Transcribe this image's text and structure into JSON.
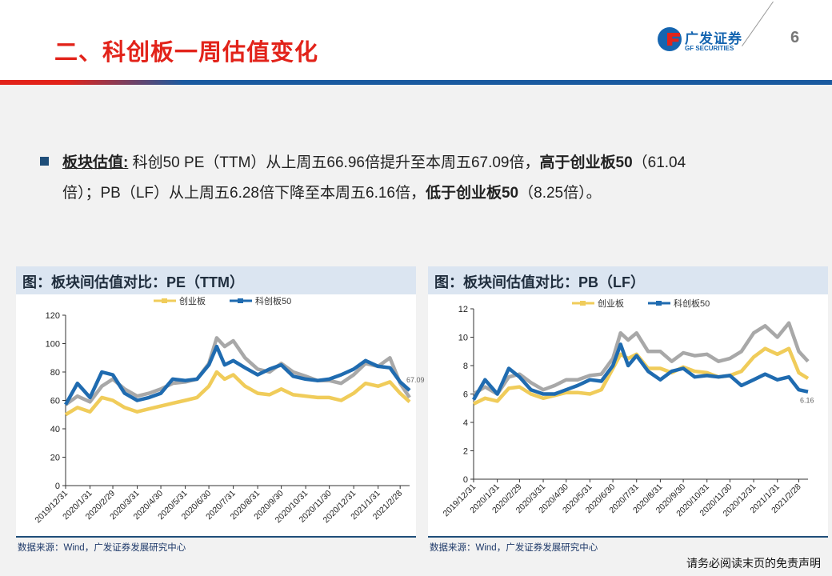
{
  "header": {
    "title": "二、科创板一周估值变化",
    "logo_cn": "广发证券",
    "logo_en": "GF SECURITIES",
    "page_number": "6"
  },
  "bullet": {
    "line1": [
      {
        "t": "板块估值:",
        "s": "u"
      },
      {
        "t": " 科创50 PE（TTM）从上周五66.96倍提升至本周五67.09倍，",
        "s": ""
      },
      {
        "t": "高于创业板50",
        "s": "b"
      },
      {
        "t": "（61.04",
        "s": ""
      }
    ],
    "line2": [
      {
        "t": "倍）；PB（LF）从上周五6.28倍下降至本周五6.16倍，",
        "s": ""
      },
      {
        "t": "低于创业板50",
        "s": "b"
      },
      {
        "t": "（8.25倍）。",
        "s": ""
      }
    ]
  },
  "panels": [
    {
      "title": "图：板块间估值对比：PE（TTM）",
      "source": "数据来源：Wind，广发证券发展研究中心"
    },
    {
      "title": "图：板块间估值对比：PB（LF）",
      "source": "数据来源：Wind，广发证券发展研究中心"
    }
  ],
  "footer": "请务必阅读末页的免责声明",
  "colors": {
    "blue": "#1f6bb0",
    "yellow": "#f0cc5a",
    "gray": "#a8a8a8",
    "red": "#e2231a"
  },
  "chart_data": [
    {
      "type": "line",
      "title": "板块间估值对比：PE（TTM）",
      "ylim": [
        0,
        120
      ],
      "yticks": [
        0,
        20,
        40,
        60,
        80,
        100,
        120
      ],
      "xticks": [
        "2019/12/31",
        "2020/1/31",
        "2020/2/29",
        "2020/3/31",
        "2020/4/30",
        "2020/5/31",
        "2020/6/30",
        "2020/7/31",
        "2020/8/31",
        "2020/9/30",
        "2020/10/31",
        "2020/11/30",
        "2020/12/31",
        "2021/1/31",
        "2021/2/28"
      ],
      "xrange": [
        "2019/12/31",
        "2021/3/12"
      ],
      "x": [
        "2019/12/31",
        "2020/1/15",
        "2020/1/31",
        "2020/2/15",
        "2020/2/29",
        "2020/3/15",
        "2020/3/31",
        "2020/4/15",
        "2020/4/30",
        "2020/5/15",
        "2020/5/31",
        "2020/6/15",
        "2020/6/30",
        "2020/7/10",
        "2020/7/20",
        "2020/7/31",
        "2020/8/15",
        "2020/8/31",
        "2020/9/15",
        "2020/9/30",
        "2020/10/15",
        "2020/10/31",
        "2020/11/15",
        "2020/11/30",
        "2020/12/15",
        "2020/12/31",
        "2021/1/15",
        "2021/1/31",
        "2021/2/15",
        "2021/2/28",
        "2021/3/12"
      ],
      "series": [
        {
          "name": "",
          "color": "#a8a8a8",
          "values": [
            57,
            63,
            59,
            70,
            75,
            68,
            63,
            65,
            68,
            72,
            73,
            75,
            86,
            104,
            98,
            102,
            90,
            82,
            80,
            86,
            80,
            77,
            74,
            74,
            72,
            78,
            86,
            84,
            90,
            72,
            62
          ]
        },
        {
          "name": "创业板",
          "color": "#f0cc5a",
          "values": [
            50,
            55,
            52,
            62,
            60,
            55,
            52,
            54,
            56,
            58,
            60,
            62,
            70,
            80,
            75,
            78,
            70,
            65,
            64,
            68,
            64,
            63,
            62,
            62,
            60,
            65,
            72,
            70,
            73,
            65,
            59
          ]
        },
        {
          "name": "科创板50",
          "color": "#1f6bb0",
          "values": [
            57,
            72,
            62,
            80,
            78,
            65,
            60,
            62,
            65,
            75,
            74,
            75,
            85,
            98,
            85,
            88,
            83,
            78,
            82,
            85,
            77,
            75,
            74,
            75,
            78,
            82,
            88,
            84,
            83,
            73,
            67.09
          ]
        }
      ],
      "end_label": "67.09",
      "legend": "top-center"
    },
    {
      "type": "line",
      "title": "板块间估值对比：PB（LF）",
      "ylim": [
        0,
        12
      ],
      "yticks": [
        0,
        2,
        4,
        6,
        8,
        10,
        12
      ],
      "xticks": [
        "2019/12/31",
        "2020/1/31",
        "2020/2/29",
        "2020/3/31",
        "2020/4/30",
        "2020/5/31",
        "2020/6/30",
        "2020/7/31",
        "2020/8/31",
        "2020/9/30",
        "2020/10/31",
        "2020/11/30",
        "2020/12/31",
        "2021/1/31",
        "2021/2/28"
      ],
      "xrange": [
        "2019/12/31",
        "2021/3/12"
      ],
      "x": [
        "2019/12/31",
        "2020/1/15",
        "2020/1/31",
        "2020/2/15",
        "2020/2/29",
        "2020/3/15",
        "2020/3/31",
        "2020/4/15",
        "2020/4/30",
        "2020/5/15",
        "2020/5/31",
        "2020/6/15",
        "2020/6/30",
        "2020/7/10",
        "2020/7/20",
        "2020/7/31",
        "2020/8/15",
        "2020/8/31",
        "2020/9/15",
        "2020/9/30",
        "2020/10/15",
        "2020/10/31",
        "2020/11/15",
        "2020/11/30",
        "2020/12/15",
        "2020/12/31",
        "2021/1/15",
        "2021/1/31",
        "2021/2/15",
        "2021/2/28",
        "2021/3/12"
      ],
      "series": [
        {
          "name": "",
          "color": "#a8a8a8",
          "values": [
            6.0,
            6.5,
            6.0,
            7.2,
            7.4,
            6.8,
            6.3,
            6.6,
            7.0,
            7.0,
            7.3,
            7.4,
            8.5,
            10.3,
            9.8,
            10.3,
            9.0,
            9.0,
            8.3,
            8.9,
            8.7,
            8.8,
            8.3,
            8.5,
            9.0,
            10.3,
            10.8,
            10.0,
            11.0,
            9.0,
            8.3
          ]
        },
        {
          "name": "创业板",
          "color": "#f0cc5a",
          "values": [
            5.3,
            5.7,
            5.5,
            6.4,
            6.5,
            6.0,
            5.7,
            5.9,
            6.1,
            6.1,
            6.0,
            6.3,
            7.8,
            8.8,
            8.5,
            8.8,
            7.8,
            7.8,
            7.5,
            7.9,
            7.6,
            7.5,
            7.2,
            7.3,
            7.6,
            8.6,
            9.2,
            8.8,
            9.2,
            7.5,
            7.1
          ]
        },
        {
          "name": "科创板50",
          "color": "#1f6bb0",
          "values": [
            5.6,
            7.0,
            6.0,
            7.8,
            7.2,
            6.3,
            6.0,
            6.0,
            6.3,
            6.6,
            7.0,
            6.9,
            8.0,
            9.5,
            8.0,
            8.7,
            7.6,
            7.0,
            7.6,
            7.8,
            7.2,
            7.3,
            7.2,
            7.3,
            6.6,
            7.0,
            7.4,
            7.0,
            7.2,
            6.3,
            6.16
          ]
        }
      ],
      "end_label": "6.16",
      "legend": "top-center"
    }
  ]
}
